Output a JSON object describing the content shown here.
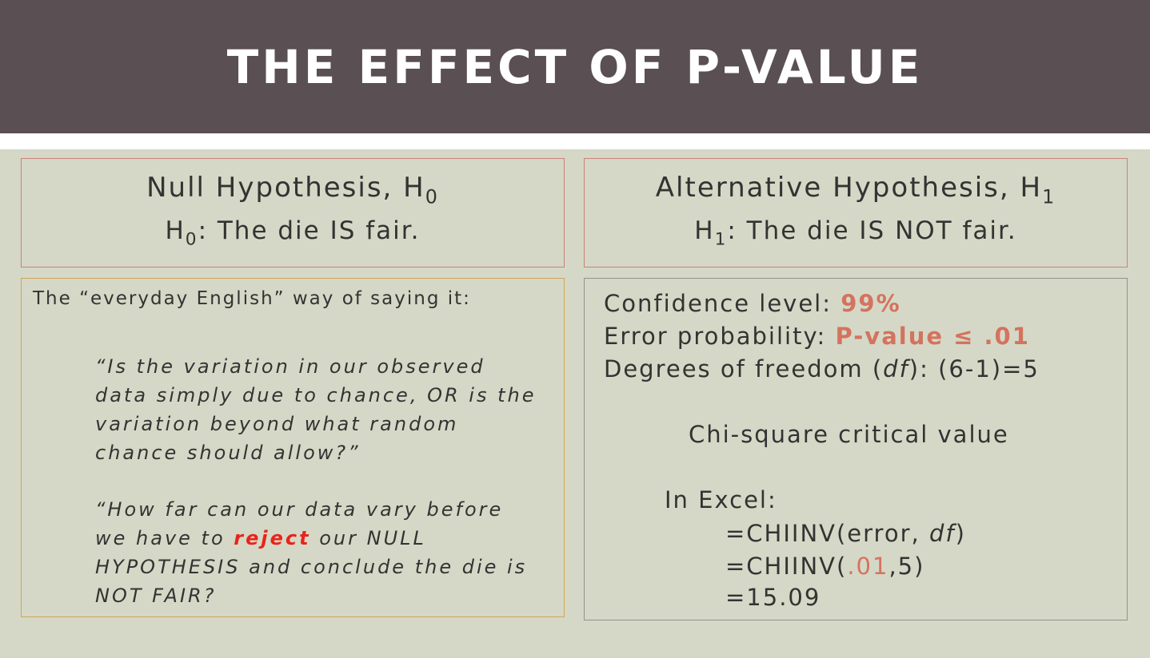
{
  "slide": {
    "title": "THE EFFECT OF P-VALUE"
  },
  "null_hypothesis": {
    "heading": "Null Hypothesis, H",
    "heading_sub": "0",
    "statement_prefix": "H",
    "statement_sub": "0",
    "statement": ": The die IS fair."
  },
  "alt_hypothesis": {
    "heading": "Alternative Hypothesis, H",
    "heading_sub": "1",
    "statement_prefix": "H",
    "statement_sub": "1",
    "statement": ": The die IS NOT fair."
  },
  "everyday": {
    "lead": "The “everyday English” way of saying it:",
    "quote1": "“Is the variation in our observed data simply due to chance, OR is the variation beyond what random chance should allow?”",
    "quote2_before": "“How far can our data vary before we have to ",
    "quote2_highlight": "reject",
    "quote2_after": " our NULL HYPOTHESIS and conclude the die is NOT FAIR?"
  },
  "calc": {
    "confidence_label": "Confidence level: ",
    "confidence_value": "99%",
    "error_label": "Error probability: ",
    "error_value": "P-value ≤ .01",
    "dof_label_a": "Degrees of freedom (",
    "dof_label_df": "df",
    "dof_label_b": "): (6-1)=5",
    "critical_title": "Chi-square critical value",
    "excel_label": "In Excel:",
    "formula1_a": "=CHIINV(error, ",
    "formula1_df": "df",
    "formula1_b": ")",
    "formula2_a": "=CHIINV(",
    "formula2_value": ".01",
    "formula2_b": ",5)",
    "result": "=15.09"
  },
  "colors": {
    "header_bg": "#5a4f53",
    "background": "#d5d8c6",
    "accent": "#d4735f",
    "highlight_red": "#e8241c"
  }
}
